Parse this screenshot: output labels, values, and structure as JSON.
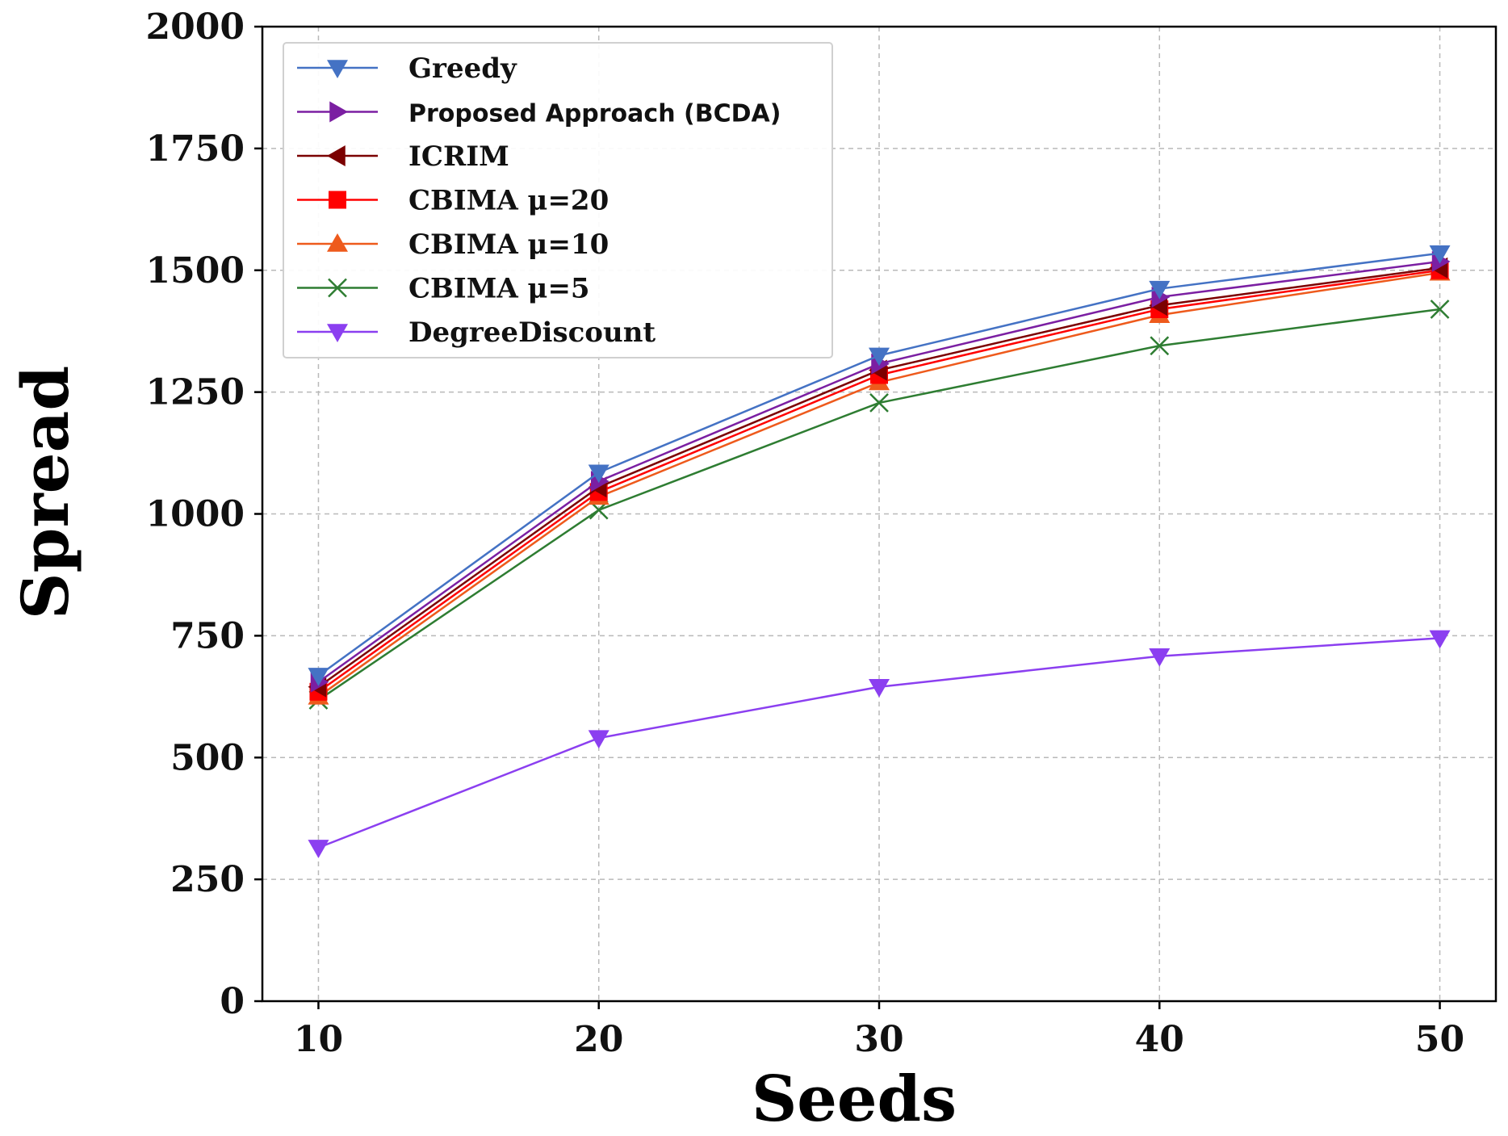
{
  "chart_data": {
    "type": "line",
    "title": "",
    "xlabel": "Seeds",
    "ylabel": "Spread",
    "x": [
      10,
      20,
      30,
      40,
      50
    ],
    "xticks": [
      "10",
      "20",
      "30",
      "40",
      "50"
    ],
    "xlim": [
      8,
      52
    ],
    "ylim": [
      0,
      2000
    ],
    "yticks": [
      "0",
      "250",
      "500",
      "750",
      "1000",
      "1250",
      "1500",
      "1750",
      "2000"
    ],
    "grid": true,
    "legend_position": "top-left",
    "series": [
      {
        "name": "Greedy",
        "color": "#4472c4",
        "marker": "triangle-down",
        "values": [
          668,
          1085,
          1325,
          1462,
          1535
        ]
      },
      {
        "name": "Proposed Approach (BCDA)",
        "color": "#7b1fa2",
        "marker": "triangle-right",
        "values": [
          655,
          1067,
          1308,
          1445,
          1518
        ]
      },
      {
        "name": "ICRIM",
        "color": "#7b0000",
        "marker": "triangle-left",
        "values": [
          645,
          1055,
          1295,
          1428,
          1505
        ]
      },
      {
        "name": "CBIMA μ=20",
        "color": "#ff0000",
        "marker": "square",
        "values": [
          635,
          1045,
          1285,
          1420,
          1500
        ]
      },
      {
        "name": "CBIMA μ=10",
        "color": "#ee5a1c",
        "marker": "triangle-up",
        "values": [
          625,
          1035,
          1270,
          1408,
          1495
        ]
      },
      {
        "name": "CBIMA μ=5",
        "color": "#2e7d32",
        "marker": "x",
        "values": [
          618,
          1008,
          1228,
          1345,
          1420
        ]
      },
      {
        "name": "DegreeDiscount",
        "color": "#8b3ff0",
        "marker": "triangle-down",
        "values": [
          315,
          540,
          645,
          708,
          745
        ]
      }
    ]
  }
}
